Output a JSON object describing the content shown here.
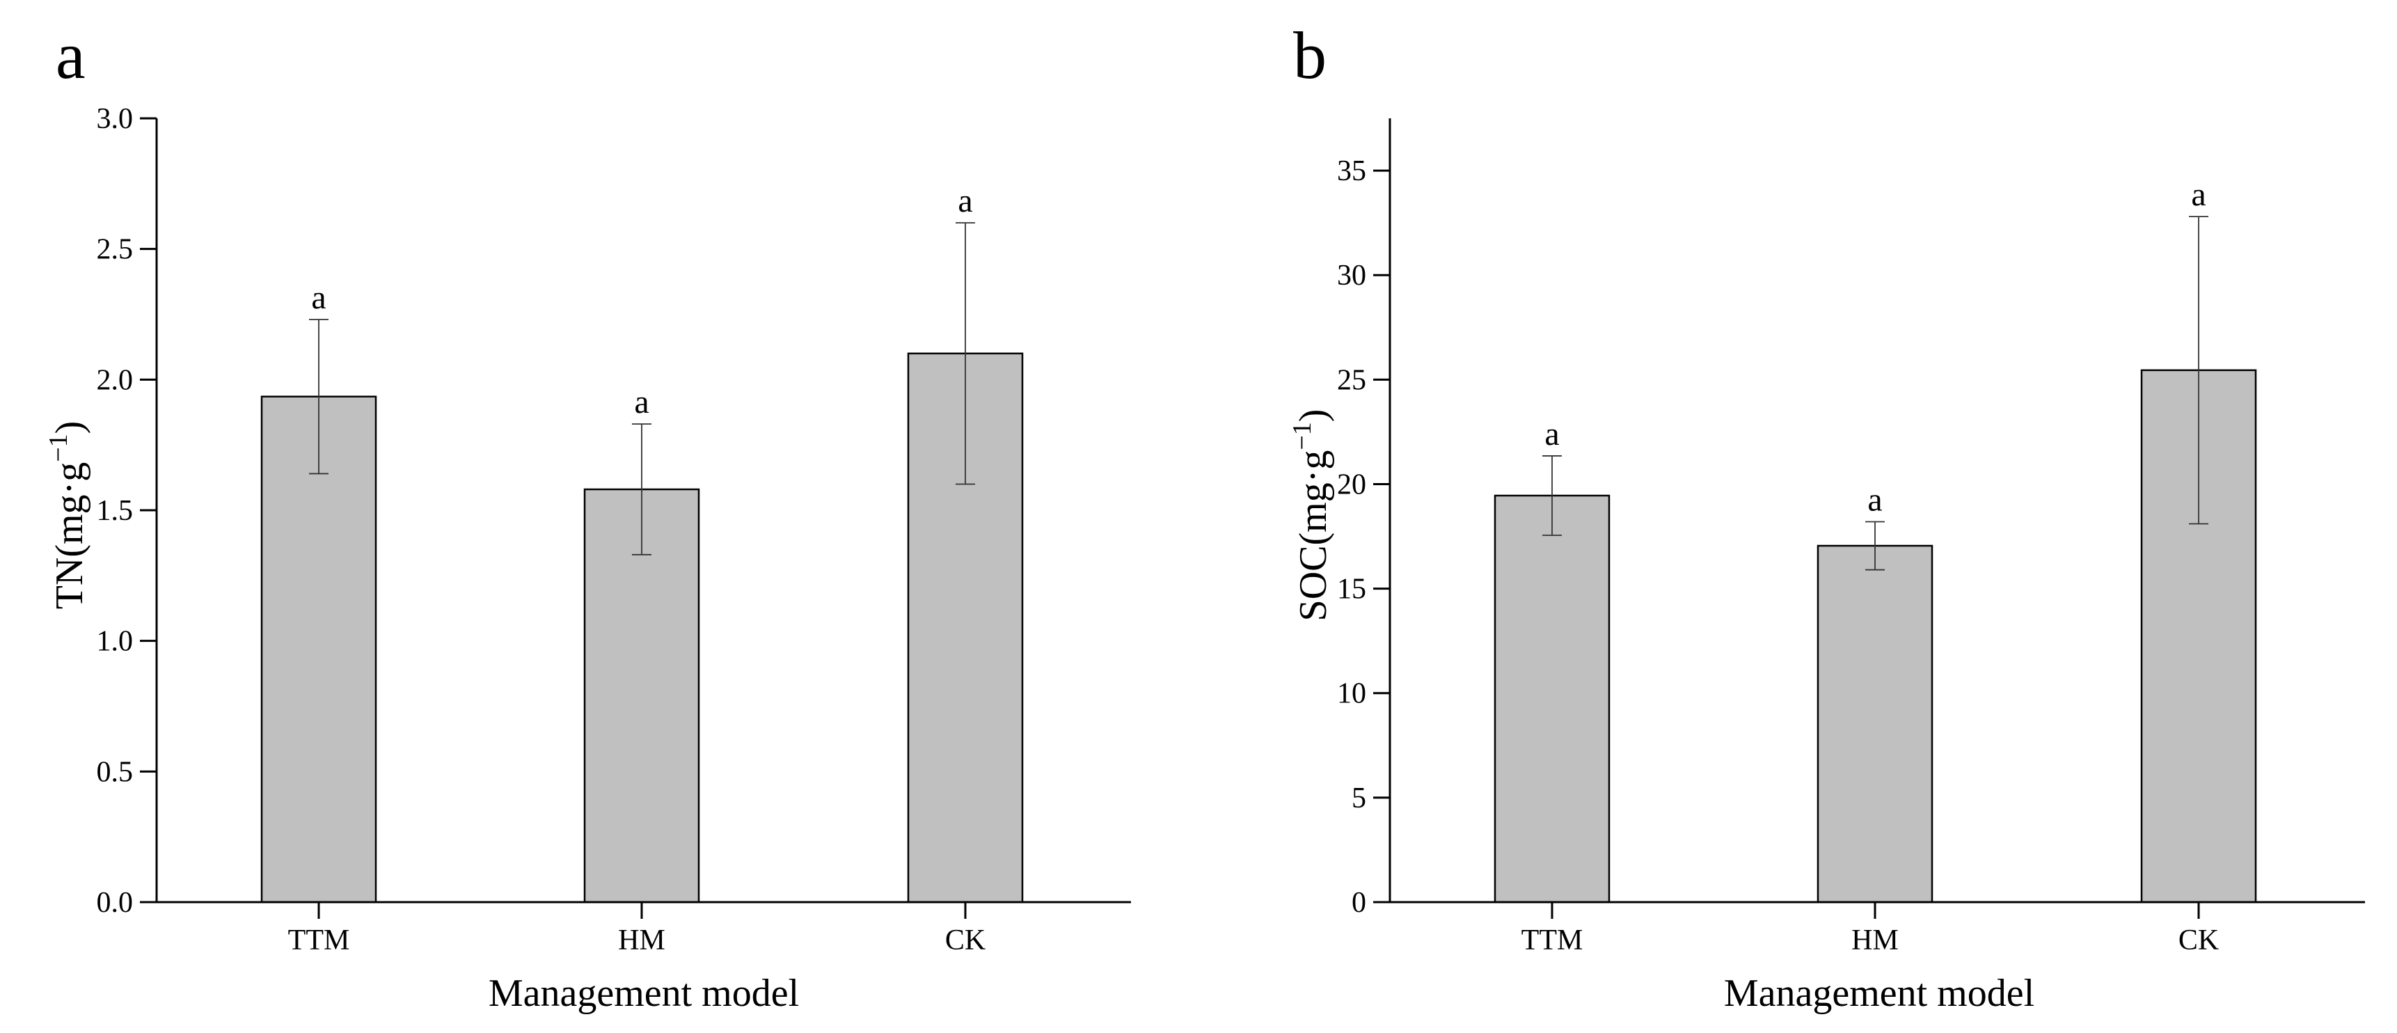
{
  "chart_data": [
    {
      "type": "bar",
      "panel_label": "a",
      "categories": [
        "TTM",
        "HM",
        "CK"
      ],
      "values": [
        1.935,
        1.58,
        2.1
      ],
      "errors": [
        0.295,
        0.25,
        0.5
      ],
      "significance": [
        "a",
        "a",
        "a"
      ],
      "xlabel": "Management model",
      "ylabel_main": "TN(mg·g",
      "ylabel_sup": "−1",
      "ylabel_end": ")",
      "ylim": [
        0,
        3.0
      ],
      "yticks": [
        0.0,
        0.5,
        1.0,
        1.5,
        2.0,
        2.5,
        3.0
      ],
      "ytick_labels": [
        "0.0",
        "0.5",
        "1.0",
        "1.5",
        "2.0",
        "2.5",
        "3.0"
      ],
      "grid": false,
      "bar_color": "#c0c0c0"
    },
    {
      "type": "bar",
      "panel_label": "b",
      "categories": [
        "TTM",
        "HM",
        "CK"
      ],
      "values": [
        19.45,
        17.05,
        25.45
      ],
      "errors": [
        1.9,
        1.15,
        7.35
      ],
      "significance": [
        "a",
        "a",
        "a"
      ],
      "xlabel": "Management model",
      "ylabel_main": "SOC(mg·g",
      "ylabel_sup": "−1",
      "ylabel_end": ")",
      "ylim": [
        0,
        37.5
      ],
      "yticks": [
        0,
        5,
        10,
        15,
        20,
        25,
        30,
        35
      ],
      "ytick_labels": [
        "0",
        "5",
        "10",
        "15",
        "20",
        "25",
        "30",
        "35"
      ],
      "grid": false,
      "bar_color": "#c0c0c0"
    }
  ]
}
